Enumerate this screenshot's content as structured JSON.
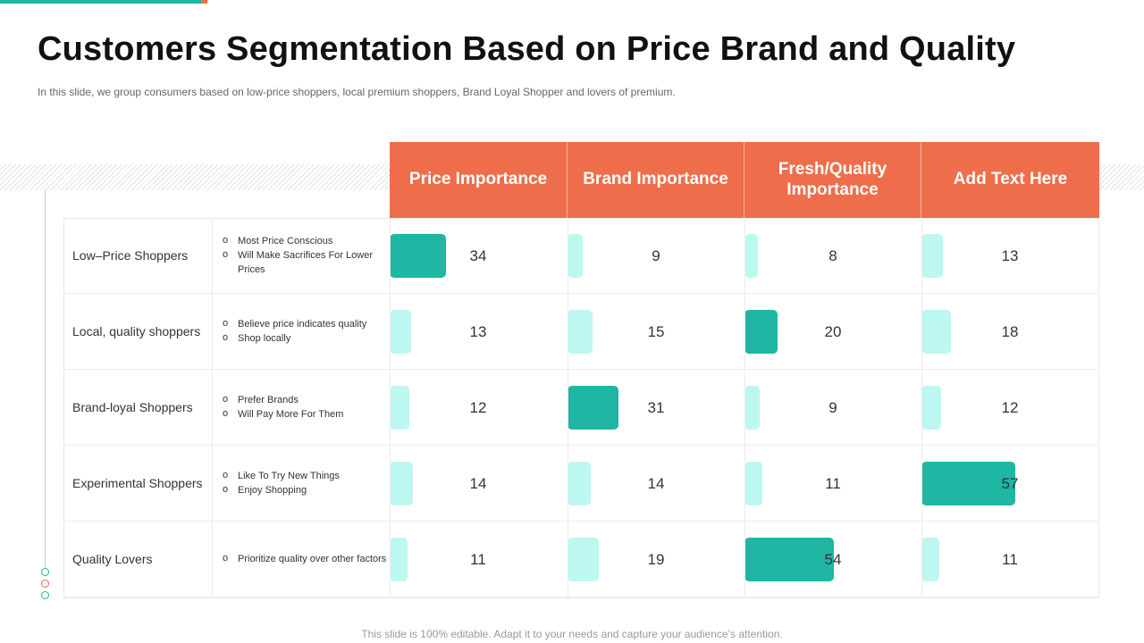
{
  "title": "Customers Segmentation Based on Price Brand and Quality",
  "subtitle": "In this slide, we group consumers based on low-price shoppers, local premium shoppers, Brand Loyal Shopper and lovers of premium.",
  "footer": "This slide is 100% editable. Adapt it to your needs and capture your audience’s attention.",
  "colors": {
    "header": "#ee6e4b",
    "bar_max": "#1fb6a3",
    "bar_other": "#bdf7f2",
    "accent_teal": "#1fb6a3",
    "accent_orange": "#ee6e4b"
  },
  "headers": [
    "Price Importance",
    "Brand Importance",
    "Fresh/Quality Importance",
    "Add Text Here"
  ],
  "rows": [
    {
      "segment": "Low–Price Shoppers",
      "bullets": [
        "Most Price Conscious",
        "Will Make Sacrifices For Lower Prices"
      ],
      "values": [
        34,
        9,
        8,
        13
      ]
    },
    {
      "segment": "Local, quality shoppers",
      "bullets": [
        "Believe price indicates quality",
        "Shop locally"
      ],
      "values": [
        13,
        15,
        20,
        18
      ]
    },
    {
      "segment": "Brand-loyal Shoppers",
      "bullets": [
        "Prefer Brands",
        "Will Pay More For Them"
      ],
      "values": [
        12,
        31,
        9,
        12
      ]
    },
    {
      "segment": "Experimental Shoppers",
      "bullets": [
        "Like To Try New Things",
        "Enjoy Shopping"
      ],
      "values": [
        14,
        14,
        11,
        57
      ]
    },
    {
      "segment": "Quality Lovers",
      "bullets": [
        "Prioritize quality over other factors"
      ],
      "values": [
        11,
        19,
        54,
        11
      ]
    }
  ]
}
